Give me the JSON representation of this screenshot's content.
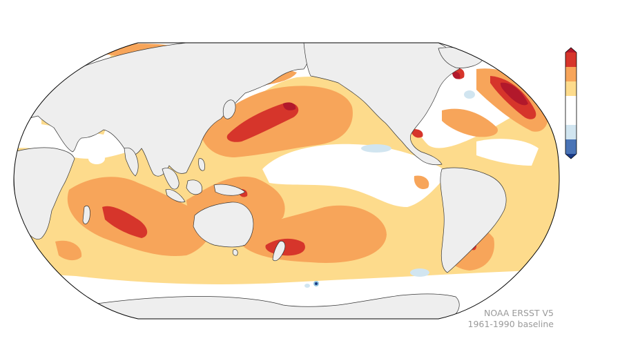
{
  "map": {
    "projection": "Robinson",
    "central_longitude": 150,
    "ocean_background": "#ffffff",
    "land_color": "#eeeeee",
    "coastline_color": "#333333"
  },
  "colorbar": {
    "orientation": "vertical",
    "extend": "both",
    "colors": [
      "#b2182b",
      "#d6352b",
      "#f7a55a",
      "#fddb8c",
      "#ffffff",
      "#ffffff",
      "#d1e5f0",
      "#92c5de",
      "#4a74b6",
      "#1a3a86"
    ],
    "tick_labels": []
  },
  "credit": {
    "source": "NOAA ERSST V5",
    "baseline": "1961-1990 baseline"
  }
}
